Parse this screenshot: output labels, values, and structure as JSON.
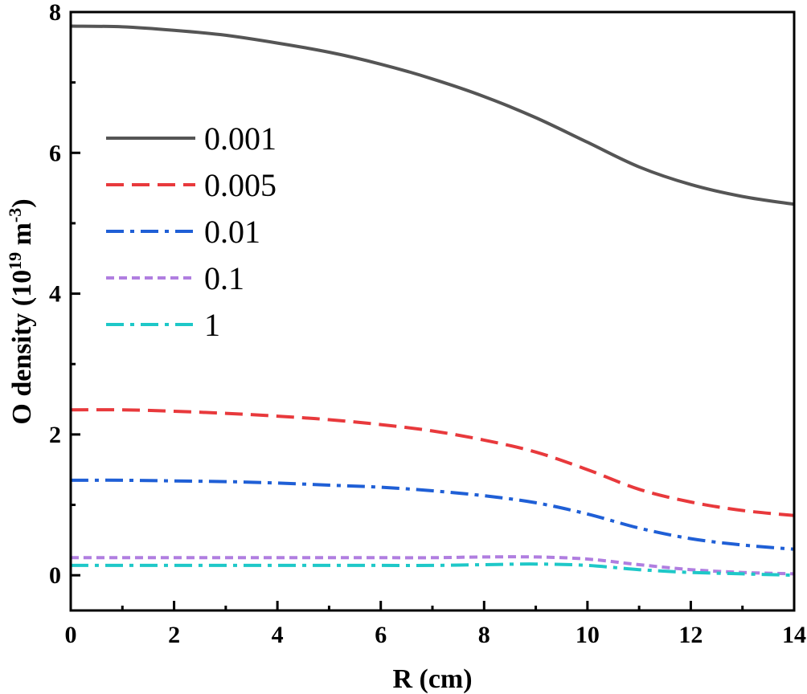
{
  "chart_data": {
    "type": "line",
    "xlabel": "R (cm)",
    "ylabel_main": "O density (10",
    "ylabel_sup1": "19",
    "ylabel_mid": " m",
    "ylabel_sup2": "-3",
    "ylabel_end": ")",
    "xlim": [
      0,
      14
    ],
    "ylim": [
      -0.5,
      8
    ],
    "xticks": [
      "0",
      "2",
      "4",
      "6",
      "8",
      "10",
      "12",
      "14"
    ],
    "yticks": [
      "0",
      "2",
      "4",
      "6",
      "8"
    ],
    "legend_position": "upper-left",
    "grid": false,
    "x": [
      0,
      1,
      2,
      3,
      4,
      5,
      6,
      7,
      8,
      9,
      10,
      11,
      12,
      13,
      14
    ],
    "series": [
      {
        "name": "0.001",
        "color": "#555555",
        "dash": "solid",
        "values": [
          7.8,
          7.79,
          7.74,
          7.67,
          7.56,
          7.43,
          7.26,
          7.05,
          6.8,
          6.5,
          6.15,
          5.8,
          5.55,
          5.38,
          5.27
        ]
      },
      {
        "name": "0.005",
        "color": "#e8393c",
        "dash": "dash",
        "values": [
          2.35,
          2.35,
          2.33,
          2.3,
          2.26,
          2.21,
          2.14,
          2.05,
          1.92,
          1.75,
          1.5,
          1.22,
          1.04,
          0.92,
          0.85
        ]
      },
      {
        "name": "0.01",
        "color": "#1f5fd6",
        "dash": "dashdot",
        "values": [
          1.35,
          1.35,
          1.34,
          1.33,
          1.31,
          1.28,
          1.25,
          1.2,
          1.13,
          1.03,
          0.87,
          0.67,
          0.52,
          0.43,
          0.37
        ]
      },
      {
        "name": "0.1",
        "color": "#b07ee0",
        "dash": "shortdash",
        "values": [
          0.25,
          0.25,
          0.25,
          0.25,
          0.25,
          0.25,
          0.25,
          0.25,
          0.26,
          0.26,
          0.23,
          0.15,
          0.08,
          0.04,
          0.02
        ]
      },
      {
        "name": "1",
        "color": "#1ec8c8",
        "dash": "dashdot",
        "values": [
          0.14,
          0.14,
          0.14,
          0.14,
          0.14,
          0.14,
          0.14,
          0.14,
          0.15,
          0.16,
          0.14,
          0.08,
          0.04,
          0.02,
          0.0
        ]
      }
    ]
  }
}
